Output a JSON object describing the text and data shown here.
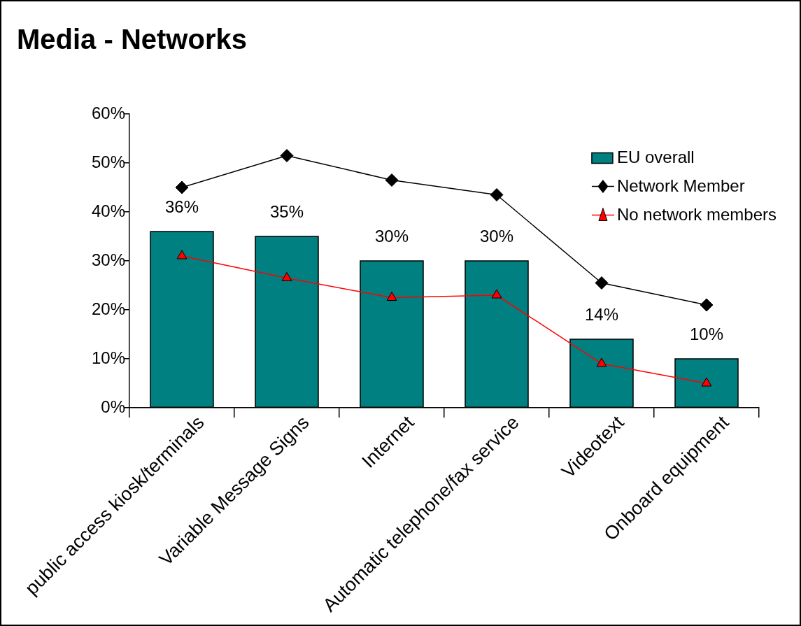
{
  "chart_data": {
    "type": "bar",
    "title": "Media - Networks",
    "categories": [
      "public access kiosk/terminals",
      "Variable Message Signs",
      "Internet",
      "Automatic telephone/fax service",
      "Videotext",
      "Onboard equipment"
    ],
    "series": [
      {
        "name": "EU overall",
        "color": "#008080",
        "values": [
          36,
          35,
          30,
          30,
          14,
          10
        ],
        "value_labels": [
          "36%",
          "35%",
          "30%",
          "30%",
          "14%",
          "10%"
        ]
      },
      {
        "name": "Network Member",
        "type": "line",
        "color": "#000000",
        "marker": "diamond",
        "values": [
          45,
          51.5,
          46.5,
          43.5,
          25.5,
          21
        ]
      },
      {
        "name": "No network members",
        "type": "line",
        "color": "#ff0000",
        "marker": "triangle",
        "values": [
          31,
          26.5,
          22.5,
          23,
          9,
          5
        ]
      }
    ],
    "ylim": [
      0,
      60
    ],
    "yticks": [
      {
        "value": 0,
        "label": "0%"
      },
      {
        "value": 10,
        "label": "10%"
      },
      {
        "value": 20,
        "label": "20%"
      },
      {
        "value": 30,
        "label": "30%"
      },
      {
        "value": 40,
        "label": "40%"
      },
      {
        "value": 50,
        "label": "50%"
      },
      {
        "value": 60,
        "label": "60%"
      }
    ],
    "legend": "top right"
  }
}
